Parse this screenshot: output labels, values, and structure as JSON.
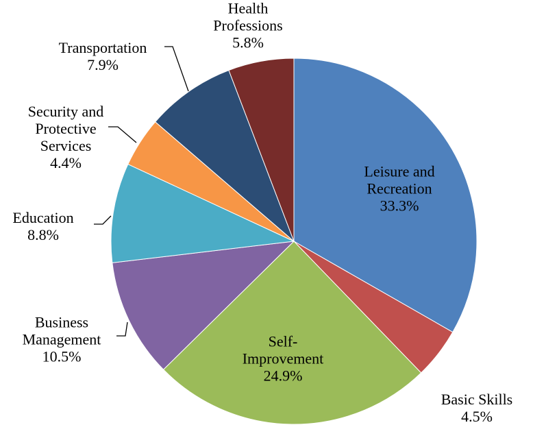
{
  "chart_data": {
    "type": "pie",
    "categories": [
      "Leisure and Recreation",
      "Basic Skills",
      "Self-Improvement",
      "Business Management",
      "Education",
      "Security and Protective Services",
      "Transportation",
      "Health Professions"
    ],
    "values": [
      33.3,
      4.5,
      24.9,
      10.5,
      8.8,
      4.4,
      7.9,
      5.8
    ],
    "value_labels": [
      "33.3%",
      "4.5%",
      "24.9%",
      "10.5%",
      "8.8%",
      "4.4%",
      "7.9%",
      "5.8%"
    ],
    "colors": [
      "#4f81bd",
      "#c0504d",
      "#9bbb59",
      "#8064a2",
      "#4bacc6",
      "#f79646",
      "#2c4d75",
      "#772c2a"
    ]
  }
}
